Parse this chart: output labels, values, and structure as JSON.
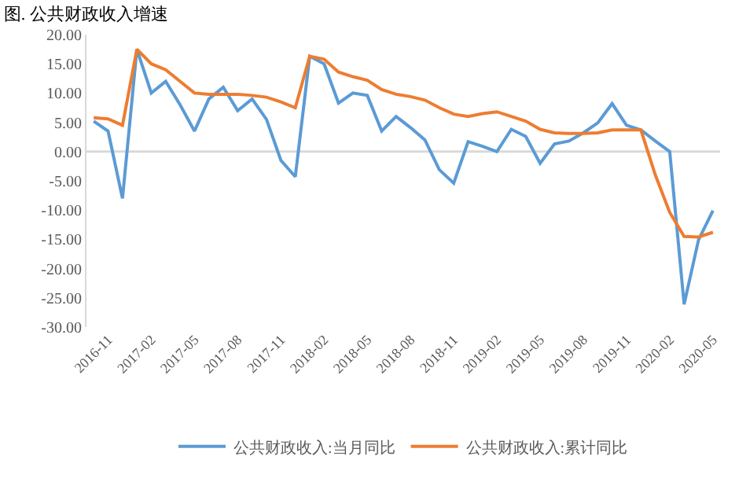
{
  "chart_data": {
    "type": "line",
    "title": "图. 公共财政收入增速",
    "categories": [
      null,
      "2016-11",
      null,
      null,
      "2017-02",
      null,
      null,
      "2017-05",
      null,
      null,
      "2017-08",
      null,
      null,
      "2017-11",
      null,
      null,
      "2018-02",
      null,
      null,
      "2018-05",
      null,
      null,
      "2018-08",
      null,
      null,
      "2018-11",
      null,
      null,
      "2019-02",
      null,
      null,
      "2019-05",
      null,
      null,
      "2019-08",
      null,
      null,
      "2019-11",
      null,
      null,
      "2020-02",
      null,
      null,
      "2020-05"
    ],
    "series": [
      {
        "name": "公共财政收入:当月同比",
        "color": "#5b9bd5",
        "values": [
          5.2,
          3.5,
          -8,
          17.5,
          10,
          12,
          8,
          3.5,
          9,
          11,
          7,
          9,
          5.5,
          -1.5,
          -4.3,
          16.3,
          15,
          8.3,
          10,
          9.6,
          3.5,
          6.0,
          4.1,
          2.0,
          -3.1,
          -5.4,
          1.7,
          0.9,
          0,
          3.8,
          2.6,
          -2.0,
          1.3,
          1.8,
          3.2,
          4.9,
          8.2,
          4.5,
          3.7,
          1.8,
          0,
          -26.1,
          -15.1,
          -10.1
        ]
      },
      {
        "name": "公共财政收入:累计同比",
        "color": "#ed7d31",
        "values": [
          5.8,
          5.6,
          4.5,
          17.5,
          15,
          14,
          12,
          10,
          9.8,
          9.8,
          9.8,
          9.6,
          9.3,
          8.5,
          7.5,
          16.3,
          15.8,
          13.6,
          12.8,
          12.2,
          10.6,
          9.8,
          9.4,
          8.8,
          7.5,
          6.4,
          6.0,
          6.5,
          6.8,
          6.0,
          5.2,
          3.8,
          3.2,
          3.1,
          3.1,
          3.2,
          3.7,
          3.7,
          3.7,
          -4.0,
          -10.4,
          -14.5,
          -14.6,
          -13.8
        ]
      }
    ],
    "ylim": [
      -30,
      20
    ],
    "yticks": [
      {
        "value": -30,
        "label": "-30.00"
      },
      {
        "value": -25,
        "label": "-25.00"
      },
      {
        "value": -20,
        "label": "-20.00"
      },
      {
        "value": -15,
        "label": "-15.00"
      },
      {
        "value": -10,
        "label": "-10.00"
      },
      {
        "value": -5,
        "label": "-5.00"
      },
      {
        "value": 0,
        "label": "0.00"
      },
      {
        "value": 5,
        "label": "5.00"
      },
      {
        "value": 10,
        "label": "10.00"
      },
      {
        "value": 15,
        "label": "15.00"
      },
      {
        "value": 20,
        "label": "20.00"
      }
    ],
    "ref_lines": [
      {
        "axis": "y",
        "value": 0,
        "color": "#d9d9d9"
      }
    ],
    "legend": "bottom",
    "marker": "none",
    "line_style": "solid"
  }
}
